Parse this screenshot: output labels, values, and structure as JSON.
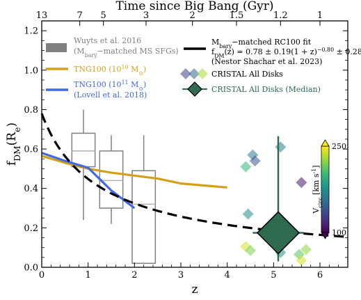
{
  "chart_data": {
    "type": "scatter",
    "title": "",
    "xlabel": "z",
    "ylabel": "f_DM(R_e)",
    "xlim": [
      0,
      6.6
    ],
    "ylim": [
      0,
      1.25
    ],
    "x_ticks": [
      0,
      1,
      2,
      3,
      4,
      5,
      6
    ],
    "y_ticks": [
      0.0,
      0.2,
      0.4,
      0.6,
      0.8,
      1.0,
      1.2
    ],
    "top_axis": {
      "label": "Time since Big Bang (Gyr)",
      "ticks": [
        {
          "label": "13",
          "z": 0.0
        },
        {
          "label": "7",
          "z": 0.82
        },
        {
          "label": "5",
          "z": 1.33
        },
        {
          "label": "3",
          "z": 2.25
        },
        {
          "label": "2",
          "z": 3.25
        },
        {
          "label": "1.5",
          "z": 4.2
        },
        {
          "label": "1.2",
          "z": 5.15
        },
        {
          "label": "1",
          "z": 6.0
        }
      ]
    },
    "grid": false,
    "legend_left": [
      {
        "name": "Wuyts et al. 2016",
        "name2": "(M_bary−matched MS SFGs)",
        "color": "#808080",
        "style": "box"
      },
      {
        "name": "TNG100 (10^10 M_⊙)",
        "color": "#D4A017",
        "style": "line"
      },
      {
        "name": "TNG100 (10^11 M_⊙)",
        "name2": "(Lovell et al. 2018)",
        "color": "#4169E1",
        "style": "line"
      }
    ],
    "legend_right": [
      {
        "name": "M_bary−matched RC100 fit",
        "formula": "f_DM(z) = 0.78 ± 0.19(1 + z)^(−0.80 ± 0.28)",
        "name3": "(Nestor Shachar et al. 2023)",
        "color": "#000000",
        "style": "dashed"
      },
      {
        "name": "CRISTAL All Disks",
        "style": "diamonds"
      },
      {
        "name": "CRISTAL All Disks (Median)",
        "color": "#2E6B4F",
        "style": "big-diamond"
      }
    ],
    "series": [
      {
        "name": "TNG100 (10^10 M_⊙)",
        "color": "#D4A017",
        "x": [
          0,
          0.5,
          1.0,
          1.5,
          2.0,
          2.5,
          3.0,
          3.5,
          4.0
        ],
        "y": [
          0.565,
          0.53,
          0.5,
          0.48,
          0.465,
          0.45,
          0.425,
          0.415,
          0.405
        ]
      },
      {
        "name": "TNG100 (10^11 M_⊙)",
        "color": "#4169E1",
        "x": [
          0,
          0.5,
          1.0,
          1.5,
          2.0
        ],
        "y": [
          0.58,
          0.54,
          0.505,
          0.39,
          0.3
        ]
      },
      {
        "name": "M_bary−matched RC100 fit",
        "color": "#000000",
        "formula": {
          "a": 0.78,
          "b": -0.8
        },
        "x_range": [
          0,
          6.6
        ]
      }
    ],
    "boxes": [
      {
        "z": 0.9,
        "whisker_low": 0.24,
        "q1": 0.51,
        "median": 0.59,
        "q3": 0.68,
        "whisker_high": 0.8
      },
      {
        "z": 1.5,
        "whisker_low": 0.22,
        "q1": 0.3,
        "median": 0.44,
        "q3": 0.59,
        "whisker_high": 0.67
      },
      {
        "z": 2.2,
        "whisker_low": 0.02,
        "q1": 0.02,
        "median": 0.32,
        "q3": 0.49,
        "whisker_high": 0.67
      }
    ],
    "cristal_disks": [
      {
        "z": 4.4,
        "fdm": 0.51,
        "vcirc": 200
      },
      {
        "z": 4.45,
        "fdm": 0.27,
        "vcirc": 175
      },
      {
        "z": 4.55,
        "fdm": 0.57,
        "vcirc": 160
      },
      {
        "z": 4.6,
        "fdm": 0.54,
        "vcirc": 140
      },
      {
        "z": 4.4,
        "fdm": 0.105,
        "vcirc": 240
      },
      {
        "z": 4.5,
        "fdm": 0.085,
        "vcirc": 220
      },
      {
        "z": 5.15,
        "fdm": 0.61,
        "vcirc": 165
      },
      {
        "z": 5.15,
        "fdm": 0.075,
        "vcirc": 175
      },
      {
        "z": 5.6,
        "fdm": 0.43,
        "vcirc": 110
      },
      {
        "z": 5.55,
        "fdm": 0.065,
        "vcirc": 210
      },
      {
        "z": 5.6,
        "fdm": 0.035,
        "vcirc": 240
      },
      {
        "z": 5.7,
        "fdm": 0.09,
        "vcirc": 225
      }
    ],
    "cristal_median": {
      "z": 5.1,
      "fdm": 0.175,
      "yerr_low": 0.145,
      "yerr_high": 0.49,
      "xerr_low": 0.55,
      "xerr_high": 0.55,
      "color": "#2E6B4F"
    },
    "colorbar": {
      "label": "V_circ [km s^-1]",
      "min": 100,
      "max": 250,
      "ticks": [
        100,
        250
      ],
      "colormap": "viridis"
    }
  }
}
